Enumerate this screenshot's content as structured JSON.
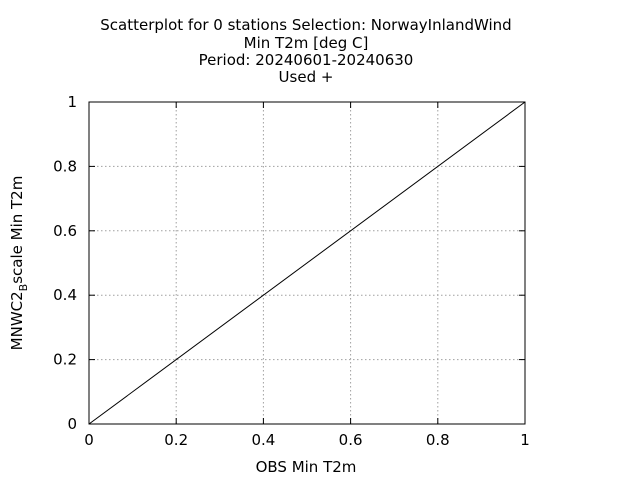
{
  "chart_data": {
    "type": "scatter",
    "title_lines": [
      "Scatterplot for    0 stations Selection: NorwayInlandWind",
      "Min T2m [deg C]",
      "Period: 20240601-20240630",
      "Used  +"
    ],
    "xlabel": "OBS Min T2m",
    "ylabel": {
      "prefix": "MNWC2",
      "subscript": "B",
      "suffix": "scale Min T2m"
    },
    "xlim": [
      0,
      1
    ],
    "ylim": [
      0,
      1
    ],
    "x_ticks": [
      "0",
      "0.2",
      "0.4",
      "0.6",
      "0.8",
      "1"
    ],
    "y_ticks": [
      "0",
      "0.2",
      "0.4",
      "0.6",
      "0.8",
      "1"
    ],
    "grid": true,
    "reference_line": {
      "x": [
        0,
        1
      ],
      "y": [
        0,
        1
      ]
    },
    "series": [
      {
        "values": []
      }
    ]
  }
}
